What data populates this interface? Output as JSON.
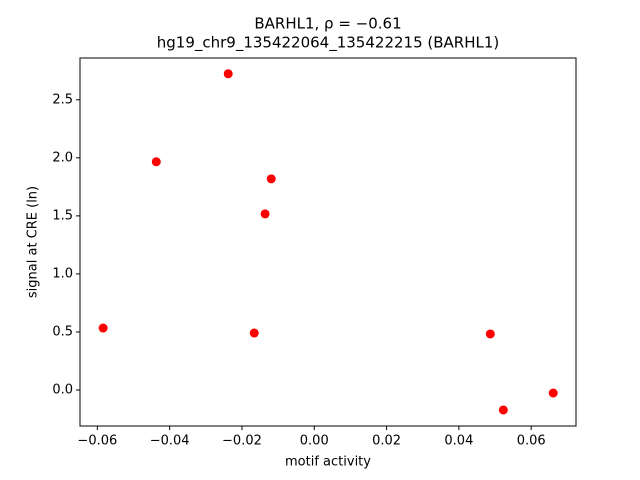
{
  "chart_data": {
    "type": "scatter",
    "title": "BARHL1, ρ = −0.61",
    "subtitle": "hg19_chr9_135422064_135422215 (BARHL1)",
    "x_label": "motif activity",
    "y_label": "signal at CRE (ln)",
    "color": "#ff0000",
    "x": [
      -0.0584,
      -0.0437,
      -0.0238,
      -0.0166,
      -0.0136,
      -0.0119,
      0.0487,
      0.0523,
      0.0661
    ],
    "values": [
      0.534,
      1.966,
      2.724,
      0.491,
      1.517,
      1.819,
      0.483,
      -0.172,
      -0.026
    ],
    "xlim": [
      -0.0648,
      0.0724
    ],
    "ylim": [
      -0.31,
      2.86
    ],
    "xticks": [
      {
        "value": -0.06,
        "label": "−0.06"
      },
      {
        "value": -0.04,
        "label": "−0.04"
      },
      {
        "value": -0.02,
        "label": "−0.02"
      },
      {
        "value": 0,
        "label": "0.00"
      },
      0.02,
      0.04,
      0.06
    ],
    "yticks": [
      {
        "value": 0,
        "label": "0.0"
      },
      0.5,
      {
        "value": 1,
        "label": "1.0"
      },
      1.5,
      {
        "value": 2,
        "label": "2.0"
      },
      2.5
    ],
    "grid": false
  }
}
